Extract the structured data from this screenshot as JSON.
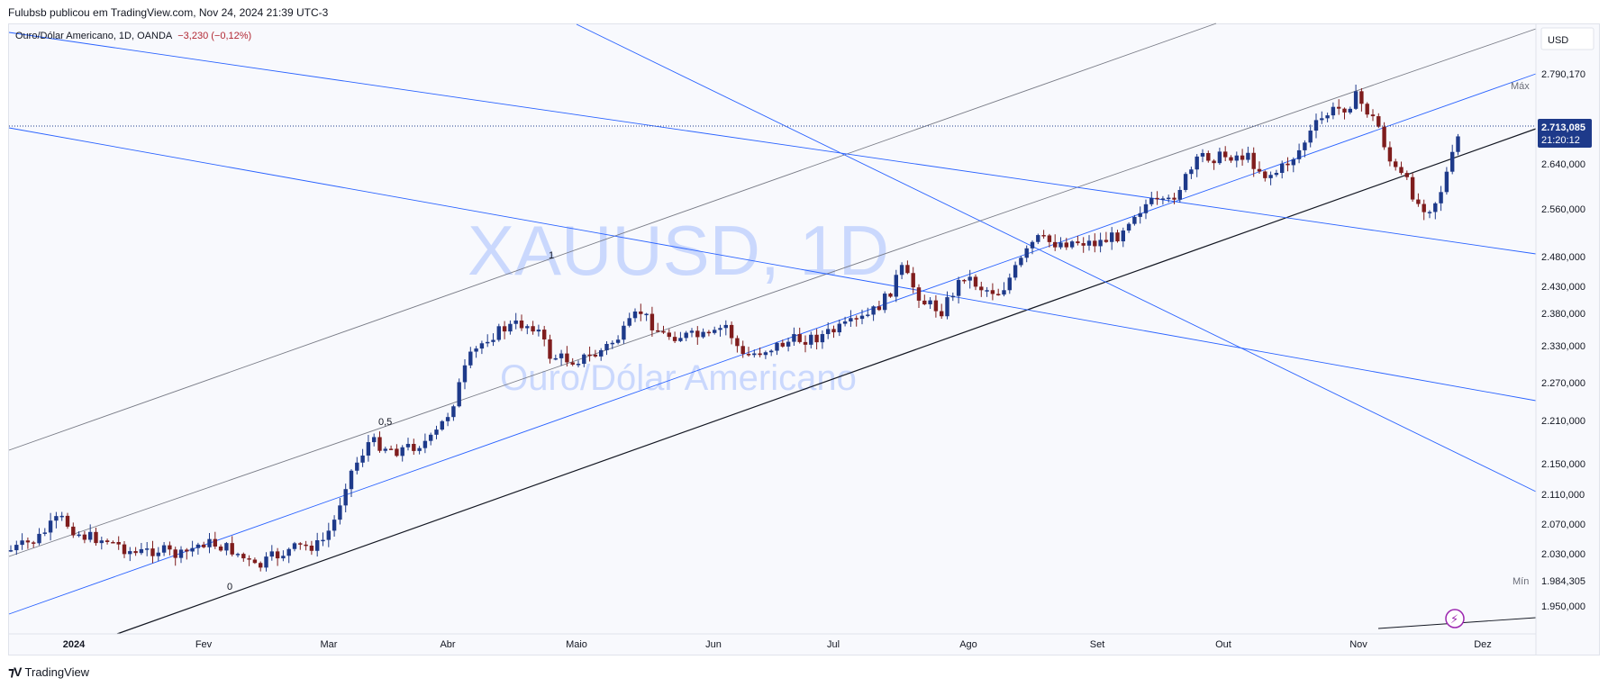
{
  "header": {
    "published_by": "Fulubsb publicou em TradingView.com, Nov 24, 2024 21:39 UTC-3"
  },
  "legend": {
    "symbol": "Ouro/Dólar Americano, 1D, OANDA",
    "change": "−3,230 (−0,12%)"
  },
  "watermark": {
    "ticker": "XAUUSD, 1D",
    "name": "Ouro/Dólar Americano"
  },
  "footer": {
    "brand": "TradingView"
  },
  "colors": {
    "up": "#1e3a8a",
    "down": "#7f1d1d",
    "channel_blue": "#2962ff",
    "channel_gray": "#787b86",
    "label_bg": "#1e3a8a"
  },
  "chart_data": {
    "type": "candlestick",
    "currency_label": "USD",
    "y_ticks": [
      "2.790,170",
      "2.640,000",
      "2.560,000",
      "2.480,000",
      "2.430,000",
      "2.380,000",
      "2.330,000",
      "2.270,000",
      "2.210,000",
      "2.150,000",
      "2.110,000",
      "2.070,000",
      "2.030,000",
      "1.984,305",
      "1.950,000"
    ],
    "x_ticks": [
      "2024",
      "Fev",
      "Mar",
      "Abr",
      "Maio",
      "Jun",
      "Jul",
      "Ago",
      "Set",
      "Out",
      "Nov",
      "Dez"
    ],
    "max_label": "Máx",
    "min_label": "Mín",
    "max_value": "2.790,170",
    "min_value": "1.984,305",
    "last_price": "2.713,085",
    "countdown": "21:20:12",
    "fib_labels": [
      "0",
      "0,5",
      "1"
    ],
    "series_close_by_month": [
      {
        "month": "Jan",
        "close": 2040
      },
      {
        "month": "Fev",
        "close": 2045
      },
      {
        "month": "Mar",
        "close": 2230
      },
      {
        "month": "Abr",
        "close": 2290
      },
      {
        "month": "Maio",
        "close": 2330
      },
      {
        "month": "Jun",
        "close": 2325
      },
      {
        "month": "Jul",
        "close": 2450
      },
      {
        "month": "Ago",
        "close": 2500
      },
      {
        "month": "Set",
        "close": 2630
      },
      {
        "month": "Out",
        "close": 2740
      },
      {
        "month": "Nov",
        "close": 2713
      }
    ]
  }
}
